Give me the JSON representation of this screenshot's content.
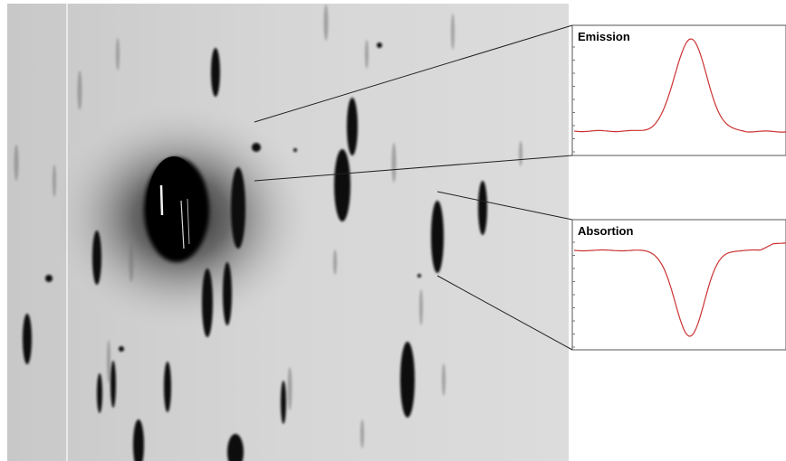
{
  "figure": {
    "panels": [
      {
        "id": "emission",
        "label": "Emission",
        "kind": "peak"
      },
      {
        "id": "absorption",
        "label": "Absortion",
        "kind": "dip"
      }
    ],
    "colors": {
      "profile_line": "#cc3333",
      "frame": "#555555",
      "leader_line": "#222222",
      "background": "#ffffff"
    }
  }
}
